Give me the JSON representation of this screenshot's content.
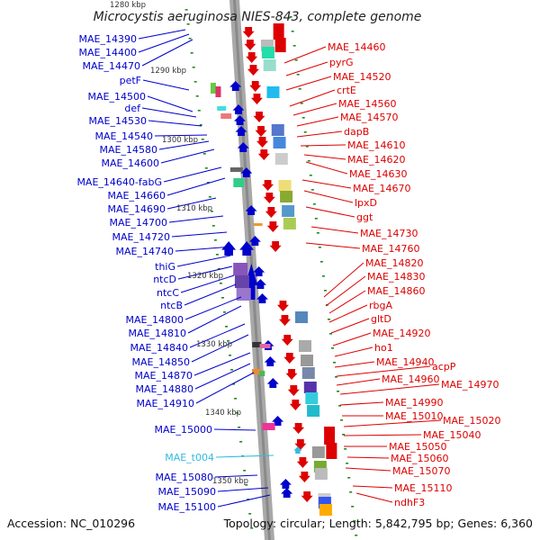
{
  "title": "Microcystis aeruginosa NIES-843, complete genome",
  "footer": {
    "accession": "Accession: NC_010296",
    "topology": "Topology: circular; Length: 5,842,795 bp; Genes: 6,360"
  },
  "colors": {
    "plus_strand": "#0000cc",
    "minus_strand": "#dd0000",
    "rna": "#33bbdd",
    "axis": "#999999",
    "tick": "#228822"
  },
  "kbp_marks": [
    "1280 kbp",
    "1290 kbp",
    "1300 kbp",
    "1310 kbp",
    "1320 kbp",
    "1330 kbp",
    "1340 kbp",
    "1350 kbp"
  ],
  "left_labels": [
    "MAE_14390",
    "MAE_14400",
    "MAE_14470",
    "petF",
    "MAE_14500",
    "def",
    "MAE_14530",
    "MAE_14540",
    "MAE_14580",
    "MAE_14600",
    "MAE_14640-fabG",
    "MAE_14660",
    "MAE_14690",
    "MAE_14700",
    "MAE_14720",
    "MAE_14740",
    "thiG",
    "ntcD",
    "ntcC",
    "ntcB",
    "MAE_14800",
    "MAE_14810",
    "MAE_14840",
    "MAE_14850",
    "MAE_14870",
    "MAE_14880",
    "MAE_14910",
    "MAE_15000",
    "MAE_t004",
    "MAE_15080",
    "MAE_15090",
    "MAE_15100"
  ],
  "right_labels": [
    "MAE_14460",
    "pyrG",
    "MAE_14520",
    "crtE",
    "MAE_14560",
    "MAE_14570",
    "dapB",
    "MAE_14610",
    "MAE_14620",
    "MAE_14630",
    "MAE_14670",
    "lpxD",
    "ggt",
    "MAE_14730",
    "MAE_14760",
    "MAE_14820",
    "MAE_14830",
    "MAE_14860",
    "rbgA",
    "gltD",
    "MAE_14920",
    "ho1",
    "MAE_14940",
    "acpP",
    "MAE_14960",
    "MAE_14970",
    "MAE_14990",
    "MAE_15010",
    "MAE_15020",
    "MAE_15040",
    "MAE_15050",
    "MAE_15060",
    "MAE_15070",
    "MAE_15110",
    "ndhF3"
  ]
}
